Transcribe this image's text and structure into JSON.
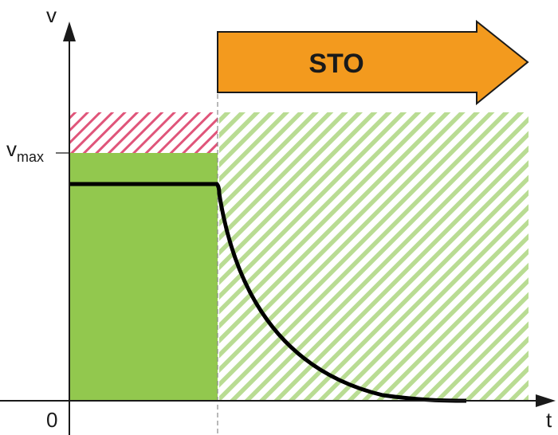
{
  "diagram": {
    "axis_y_label": "v",
    "axis_x_label": "t",
    "origin_label": "0",
    "vmax_label": "v",
    "vmax_subscript": "max",
    "banner_text": "STO"
  },
  "colors": {
    "green_fill": "#92c84e",
    "green_hatch": "#b9dc93",
    "red_hatch": "#e0557a",
    "orange": "#f39a1e",
    "axis": "#1a1a1a",
    "curve": "#000000",
    "divider": "#8a8a8a"
  }
}
